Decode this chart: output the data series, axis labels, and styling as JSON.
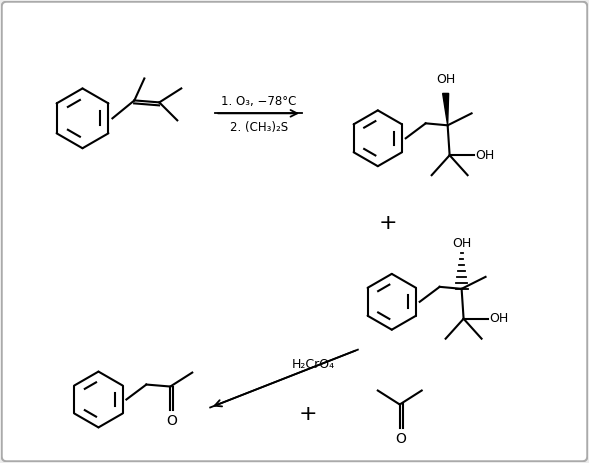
{
  "bg_color": "#ececec",
  "border_color": "#aaaaaa",
  "line_color": "#000000",
  "reaction1_label1": "1. O₃, −78°C",
  "reaction1_label2": "2. (CH₃)₂S",
  "reaction2_label": "H₂CrO₄",
  "fig_width": 5.89,
  "fig_height": 4.63,
  "dpi": 100
}
